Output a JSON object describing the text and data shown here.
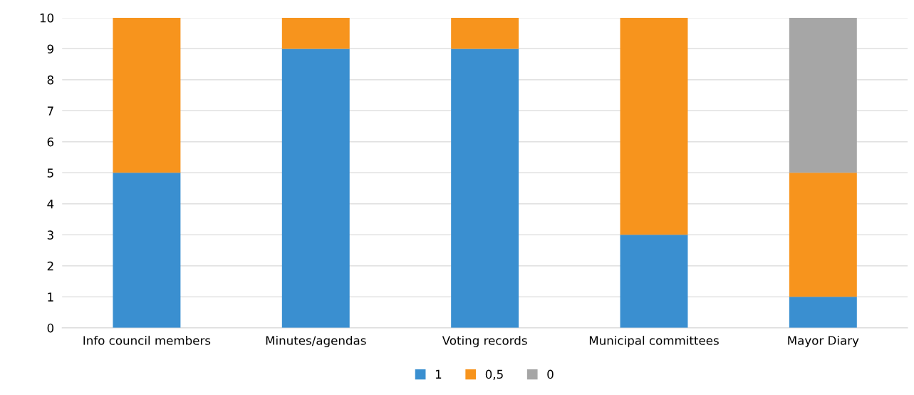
{
  "chart_data": {
    "type": "bar",
    "stacked": true,
    "categories": [
      "Info council members",
      "Minutes/agendas",
      "Voting records",
      "Municipal committees",
      "Mayor Diary"
    ],
    "series": [
      {
        "name": "1",
        "color": "#3a8fd0",
        "values": [
          5,
          9,
          9,
          3,
          1
        ]
      },
      {
        "name": "0,5",
        "color": "#f7941d",
        "values": [
          5,
          1,
          1,
          7,
          4
        ]
      },
      {
        "name": "0",
        "color": "#a6a6a6",
        "values": [
          0,
          0,
          0,
          0,
          5
        ]
      }
    ],
    "ylim": [
      0,
      10
    ],
    "yticks": [
      0,
      1,
      2,
      3,
      4,
      5,
      6,
      7,
      8,
      9,
      10
    ],
    "grid": "y",
    "legend": "bottom"
  }
}
